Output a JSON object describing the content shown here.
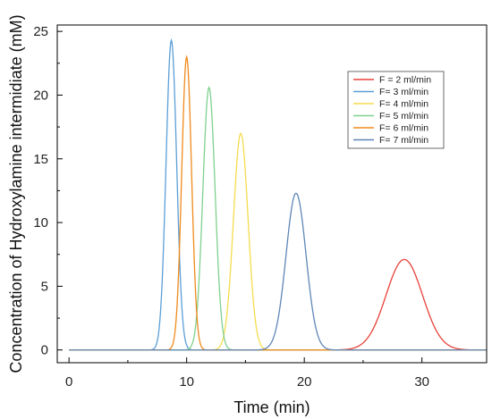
{
  "chart_data": {
    "type": "line",
    "title": "",
    "xlabel": "Time (min)",
    "ylabel": "Concentration of Hydroxylamine intermidiate (mM)",
    "xlim": [
      -1,
      35.5
    ],
    "ylim": [
      -1,
      25.5
    ],
    "xticks": [
      0,
      10,
      20,
      30
    ],
    "xtick_labels": [
      "0",
      "10",
      "20",
      "30"
    ],
    "yticks": [
      0,
      5,
      10,
      15,
      20,
      25
    ],
    "ytick_labels": [
      "0",
      "5",
      "10",
      "15",
      "20",
      "25"
    ],
    "grid": false,
    "legend_position": "top-right",
    "series": [
      {
        "name": "F = 2 ml/min",
        "color": "#e8413a",
        "peak_time": 28.5,
        "peak_height": 7.1,
        "sigma": 1.55
      },
      {
        "name": "F= 3 ml/min",
        "color": "#5b9fd6",
        "peak_time": 8.7,
        "peak_height": 24.3,
        "sigma": 0.45
      },
      {
        "name": "F= 4 ml/min",
        "color": "#f5dc4e",
        "peak_time": 14.6,
        "peak_height": 17.0,
        "sigma": 0.62
      },
      {
        "name": "F= 5 ml/min",
        "color": "#7fd18e",
        "peak_time": 11.9,
        "peak_height": 20.6,
        "sigma": 0.52
      },
      {
        "name": "F= 6 ml/min",
        "color": "#f08a1c",
        "peak_time": 10.0,
        "peak_height": 23.0,
        "sigma": 0.42
      },
      {
        "name": "F= 7 ml/min",
        "color": "#5e86b8",
        "peak_time": 19.3,
        "peak_height": 12.3,
        "sigma": 0.85
      }
    ]
  }
}
